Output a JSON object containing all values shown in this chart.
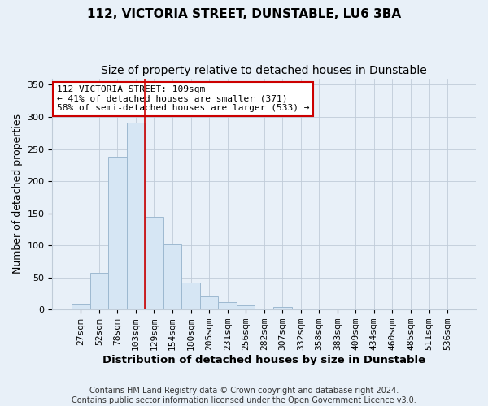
{
  "title": "112, VICTORIA STREET, DUNSTABLE, LU6 3BA",
  "subtitle": "Size of property relative to detached houses in Dunstable",
  "xlabel": "Distribution of detached houses by size in Dunstable",
  "ylabel": "Number of detached properties",
  "bar_labels": [
    "27sqm",
    "52sqm",
    "78sqm",
    "103sqm",
    "129sqm",
    "154sqm",
    "180sqm",
    "205sqm",
    "231sqm",
    "256sqm",
    "282sqm",
    "307sqm",
    "332sqm",
    "358sqm",
    "383sqm",
    "409sqm",
    "434sqm",
    "460sqm",
    "485sqm",
    "511sqm",
    "536sqm"
  ],
  "bar_heights": [
    8,
    57,
    238,
    291,
    145,
    101,
    42,
    21,
    12,
    6,
    0,
    4,
    1,
    1,
    0,
    0,
    0,
    0,
    0,
    0,
    2
  ],
  "bar_color": "#d6e6f4",
  "bar_edge_color": "#9db9d0",
  "vline_color": "#cc0000",
  "bg_color": "#e8f0f8",
  "plot_bg_color": "#e8f0f8",
  "ylim": [
    0,
    360
  ],
  "yticks": [
    0,
    50,
    100,
    150,
    200,
    250,
    300,
    350
  ],
  "annotation_title": "112 VICTORIA STREET: 109sqm",
  "annotation_line1": "← 41% of detached houses are smaller (371)",
  "annotation_line2": "58% of semi-detached houses are larger (533) →",
  "annotation_box_color": "#ffffff",
  "annotation_box_edge": "#cc0000",
  "footer1": "Contains HM Land Registry data © Crown copyright and database right 2024.",
  "footer2": "Contains public sector information licensed under the Open Government Licence v3.0.",
  "title_fontsize": 11,
  "subtitle_fontsize": 10,
  "xlabel_fontsize": 9.5,
  "ylabel_fontsize": 9,
  "tick_fontsize": 8,
  "footer_fontsize": 7,
  "annotation_fontsize": 8
}
